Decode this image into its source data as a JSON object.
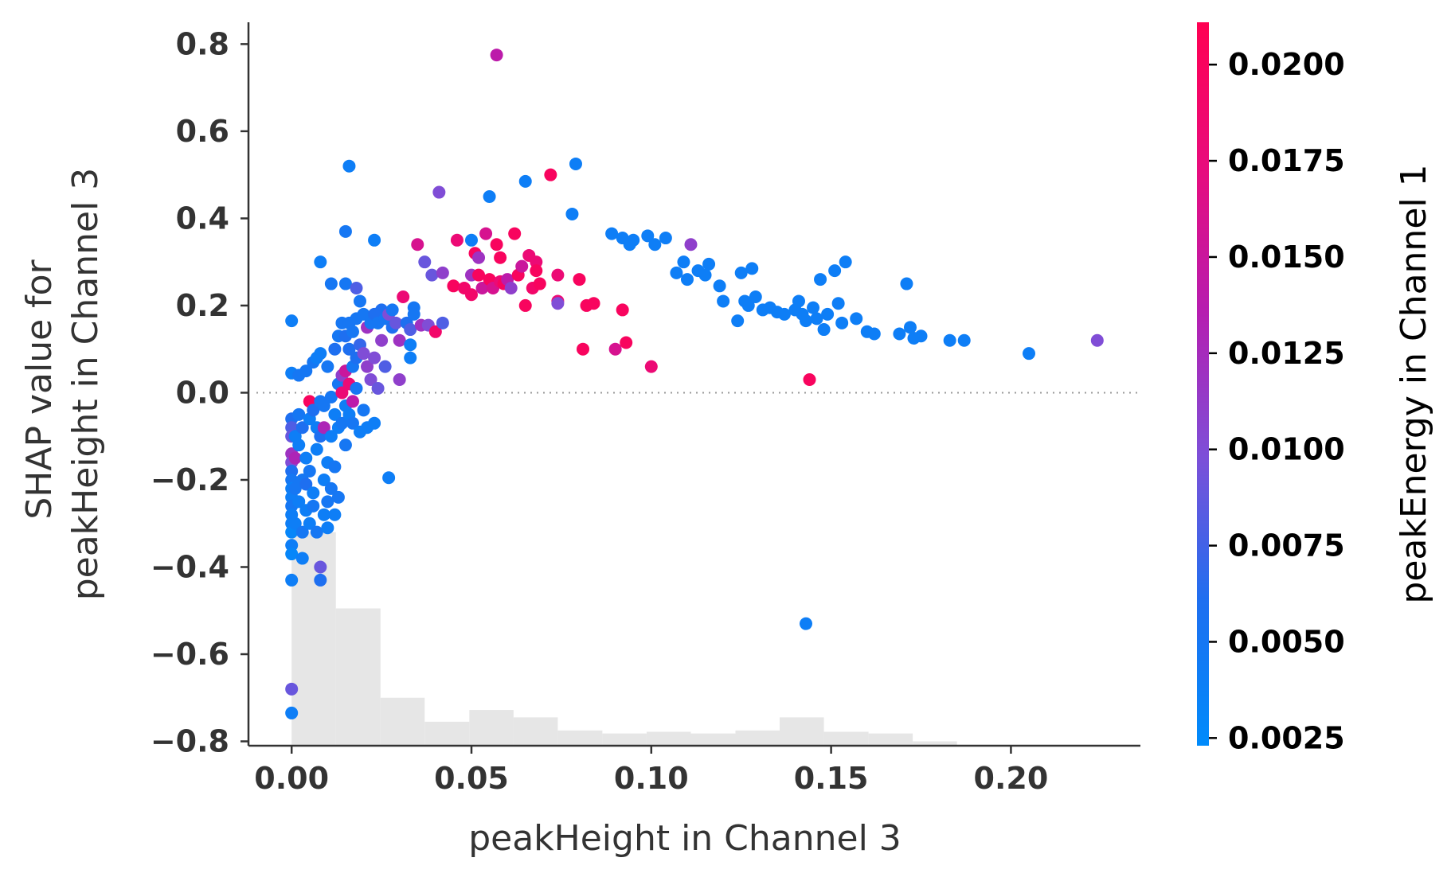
{
  "chart_data": {
    "type": "scatter",
    "xlabel": "peakHeight in Channel 3",
    "ylabel_lines": [
      "SHAP value for",
      "peakHeight in Channel 3"
    ],
    "colorbar_label": "peakEnergy in Channel 1",
    "xlim": [
      -0.012,
      0.236
    ],
    "ylim": [
      -0.81,
      0.85
    ],
    "x_ticks": [
      0.0,
      0.05,
      0.1,
      0.15,
      0.2
    ],
    "x_tick_labels": [
      "0.00",
      "0.05",
      "0.10",
      "0.15",
      "0.20"
    ],
    "y_ticks": [
      -0.8,
      -0.6,
      -0.4,
      -0.2,
      0.0,
      0.2,
      0.4,
      0.6,
      0.8
    ],
    "y_tick_labels": [
      "−0.8",
      "−0.6",
      "−0.4",
      "−0.2",
      "0.0",
      "0.2",
      "0.4",
      "0.6",
      "0.8"
    ],
    "colorbar_range": [
      0.0023,
      0.0211
    ],
    "colorbar_ticks": [
      0.0025,
      0.005,
      0.0075,
      0.01,
      0.0125,
      0.015,
      0.0175,
      0.02
    ],
    "colorbar_tick_labels": [
      "0.0025",
      "0.0050",
      "0.0075",
      "0.0100",
      "0.0125",
      "0.0150",
      "0.0175",
      "0.0200"
    ],
    "colormap": [
      "#008bfb",
      "#1e6ff0",
      "#7d4fd8",
      "#b61db0",
      "#e80c7c",
      "#ff0052"
    ],
    "zero_line": true,
    "histogram": {
      "color": "#e6e6e6",
      "y_base": -0.81,
      "bins": [
        {
          "x0": 0.0,
          "x1": 0.0123,
          "top": -0.32
        },
        {
          "x0": 0.0123,
          "x1": 0.0247,
          "top": -0.495
        },
        {
          "x0": 0.0247,
          "x1": 0.037,
          "top": -0.7
        },
        {
          "x0": 0.037,
          "x1": 0.0494,
          "top": -0.755
        },
        {
          "x0": 0.0494,
          "x1": 0.0617,
          "top": -0.728
        },
        {
          "x0": 0.0617,
          "x1": 0.074,
          "top": -0.745
        },
        {
          "x0": 0.074,
          "x1": 0.0864,
          "top": -0.775
        },
        {
          "x0": 0.0864,
          "x1": 0.0987,
          "top": -0.782
        },
        {
          "x0": 0.0987,
          "x1": 0.111,
          "top": -0.778
        },
        {
          "x0": 0.111,
          "x1": 0.1234,
          "top": -0.782
        },
        {
          "x0": 0.1234,
          "x1": 0.1357,
          "top": -0.775
        },
        {
          "x0": 0.1357,
          "x1": 0.148,
          "top": -0.745
        },
        {
          "x0": 0.148,
          "x1": 0.1604,
          "top": -0.778
        },
        {
          "x0": 0.1604,
          "x1": 0.1727,
          "top": -0.782
        },
        {
          "x0": 0.1727,
          "x1": 0.185,
          "top": -0.8
        }
      ]
    },
    "points": [
      [
        0.0,
        0.165,
        0.004
      ],
      [
        0.0,
        0.045,
        0.004
      ],
      [
        0.0,
        -0.06,
        0.006
      ],
      [
        0.0,
        -0.08,
        0.008
      ],
      [
        0.0,
        -0.1,
        0.009
      ],
      [
        0.0,
        -0.14,
        0.012
      ],
      [
        0.0,
        -0.16,
        0.01
      ],
      [
        0.0,
        -0.18,
        0.006
      ],
      [
        0.0,
        -0.2,
        0.005
      ],
      [
        0.0,
        -0.22,
        0.004
      ],
      [
        0.0,
        -0.24,
        0.004
      ],
      [
        0.0,
        -0.26,
        0.005
      ],
      [
        0.0,
        -0.28,
        0.004
      ],
      [
        0.0,
        -0.3,
        0.004
      ],
      [
        0.0,
        -0.32,
        0.003
      ],
      [
        0.0,
        -0.35,
        0.004
      ],
      [
        0.0,
        -0.37,
        0.003
      ],
      [
        0.0,
        -0.43,
        0.004
      ],
      [
        0.0,
        -0.68,
        0.009
      ],
      [
        0.0,
        -0.735,
        0.004
      ],
      [
        0.001,
        -0.1,
        0.004
      ],
      [
        0.001,
        -0.15,
        0.013
      ],
      [
        0.001,
        -0.22,
        0.005
      ],
      [
        0.001,
        -0.3,
        0.004
      ],
      [
        0.002,
        -0.05,
        0.005
      ],
      [
        0.002,
        -0.12,
        0.004
      ],
      [
        0.002,
        -0.25,
        0.004
      ],
      [
        0.002,
        0.04,
        0.005
      ],
      [
        0.003,
        -0.08,
        0.006
      ],
      [
        0.003,
        -0.2,
        0.005
      ],
      [
        0.003,
        -0.38,
        0.004
      ],
      [
        0.003,
        -0.32,
        0.005
      ],
      [
        0.004,
        0.05,
        0.005
      ],
      [
        0.004,
        -0.15,
        0.004
      ],
      [
        0.004,
        -0.27,
        0.004
      ],
      [
        0.004,
        -0.21,
        0.006
      ],
      [
        0.005,
        -0.02,
        0.02
      ],
      [
        0.005,
        -0.06,
        0.004
      ],
      [
        0.005,
        -0.18,
        0.005
      ],
      [
        0.005,
        -0.3,
        0.004
      ],
      [
        0.006,
        0.07,
        0.005
      ],
      [
        0.006,
        -0.04,
        0.006
      ],
      [
        0.006,
        -0.23,
        0.004
      ],
      [
        0.006,
        -0.26,
        0.005
      ],
      [
        0.007,
        -0.08,
        0.004
      ],
      [
        0.007,
        0.08,
        0.004
      ],
      [
        0.007,
        -0.13,
        0.004
      ],
      [
        0.007,
        -0.32,
        0.005
      ],
      [
        0.008,
        -0.02,
        0.005
      ],
      [
        0.008,
        -0.4,
        0.009
      ],
      [
        0.008,
        -0.43,
        0.006
      ],
      [
        0.008,
        -0.1,
        0.006
      ],
      [
        0.008,
        0.3,
        0.004
      ],
      [
        0.008,
        0.09,
        0.004
      ],
      [
        0.009,
        -0.08,
        0.013
      ],
      [
        0.009,
        -0.2,
        0.004
      ],
      [
        0.009,
        -0.28,
        0.004
      ],
      [
        0.009,
        -0.03,
        0.005
      ],
      [
        0.01,
        0.06,
        0.005
      ],
      [
        0.01,
        -0.16,
        0.004
      ],
      [
        0.01,
        -0.25,
        0.005
      ],
      [
        0.01,
        -0.31,
        0.004
      ],
      [
        0.011,
        0.25,
        0.005
      ],
      [
        0.011,
        -0.01,
        0.005
      ],
      [
        0.011,
        -0.1,
        0.004
      ],
      [
        0.011,
        -0.22,
        0.005
      ],
      [
        0.012,
        0.1,
        0.006
      ],
      [
        0.012,
        -0.05,
        0.004
      ],
      [
        0.012,
        -0.17,
        0.005
      ],
      [
        0.012,
        -0.28,
        0.004
      ],
      [
        0.013,
        0.13,
        0.005
      ],
      [
        0.013,
        0.02,
        0.005
      ],
      [
        0.013,
        -0.08,
        0.004
      ],
      [
        0.013,
        -0.24,
        0.005
      ],
      [
        0.014,
        0.16,
        0.005
      ],
      [
        0.014,
        0.04,
        0.011
      ],
      [
        0.014,
        0.0,
        0.018
      ],
      [
        0.014,
        -0.07,
        0.005
      ],
      [
        0.015,
        0.37,
        0.005
      ],
      [
        0.015,
        0.25,
        0.005
      ],
      [
        0.015,
        0.13,
        0.006
      ],
      [
        0.015,
        0.05,
        0.015
      ],
      [
        0.015,
        -0.03,
        0.004
      ],
      [
        0.015,
        -0.12,
        0.005
      ],
      [
        0.016,
        0.52,
        0.004
      ],
      [
        0.016,
        0.16,
        0.005
      ],
      [
        0.016,
        0.1,
        0.006
      ],
      [
        0.016,
        0.02,
        0.018
      ],
      [
        0.016,
        -0.05,
        0.004
      ],
      [
        0.017,
        0.14,
        0.005
      ],
      [
        0.017,
        0.06,
        0.005
      ],
      [
        0.017,
        -0.02,
        0.014
      ],
      [
        0.017,
        -0.07,
        0.005
      ],
      [
        0.018,
        0.24,
        0.008
      ],
      [
        0.018,
        0.17,
        0.005
      ],
      [
        0.018,
        0.08,
        0.006
      ],
      [
        0.018,
        0.01,
        0.005
      ],
      [
        0.019,
        0.21,
        0.005
      ],
      [
        0.019,
        0.11,
        0.007
      ],
      [
        0.019,
        -0.09,
        0.004
      ],
      [
        0.02,
        0.18,
        0.005
      ],
      [
        0.02,
        0.09,
        0.01
      ],
      [
        0.02,
        -0.04,
        0.005
      ],
      [
        0.021,
        0.15,
        0.012
      ],
      [
        0.021,
        0.06,
        0.011
      ],
      [
        0.021,
        -0.08,
        0.004
      ],
      [
        0.022,
        0.16,
        0.005
      ],
      [
        0.022,
        0.03,
        0.01
      ],
      [
        0.023,
        0.35,
        0.004
      ],
      [
        0.023,
        0.18,
        0.006
      ],
      [
        0.023,
        0.08,
        0.01
      ],
      [
        0.023,
        -0.07,
        0.004
      ],
      [
        0.024,
        0.16,
        0.005
      ],
      [
        0.024,
        0.01,
        0.009
      ],
      [
        0.025,
        0.19,
        0.006
      ],
      [
        0.025,
        0.12,
        0.011
      ],
      [
        0.026,
        0.17,
        0.005
      ],
      [
        0.026,
        0.06,
        0.008
      ],
      [
        0.027,
        -0.195,
        0.004
      ],
      [
        0.027,
        0.18,
        0.01
      ],
      [
        0.028,
        0.15,
        0.006
      ],
      [
        0.028,
        0.19,
        0.005
      ],
      [
        0.029,
        0.16,
        0.009
      ],
      [
        0.03,
        0.12,
        0.012
      ],
      [
        0.03,
        0.03,
        0.011
      ],
      [
        0.031,
        0.22,
        0.018
      ],
      [
        0.032,
        0.16,
        0.006
      ],
      [
        0.033,
        0.145,
        0.008
      ],
      [
        0.033,
        0.11,
        0.004
      ],
      [
        0.033,
        0.08,
        0.004
      ],
      [
        0.034,
        0.195,
        0.005
      ],
      [
        0.034,
        0.18,
        0.005
      ],
      [
        0.035,
        0.34,
        0.016
      ],
      [
        0.036,
        0.155,
        0.012
      ],
      [
        0.037,
        0.3,
        0.009
      ],
      [
        0.038,
        0.155,
        0.01
      ],
      [
        0.039,
        0.27,
        0.009
      ],
      [
        0.04,
        0.14,
        0.019
      ],
      [
        0.041,
        0.46,
        0.01
      ],
      [
        0.042,
        0.275,
        0.011
      ],
      [
        0.042,
        0.16,
        0.008
      ],
      [
        0.045,
        0.245,
        0.02
      ],
      [
        0.046,
        0.35,
        0.018
      ],
      [
        0.048,
        0.24,
        0.019
      ],
      [
        0.05,
        0.27,
        0.012
      ],
      [
        0.05,
        0.225,
        0.019
      ],
      [
        0.05,
        0.35,
        0.004
      ],
      [
        0.051,
        0.32,
        0.02
      ],
      [
        0.052,
        0.31,
        0.012
      ],
      [
        0.052,
        0.27,
        0.02
      ],
      [
        0.053,
        0.24,
        0.015
      ],
      [
        0.054,
        0.365,
        0.016
      ],
      [
        0.055,
        0.45,
        0.004
      ],
      [
        0.055,
        0.26,
        0.02
      ],
      [
        0.056,
        0.24,
        0.016
      ],
      [
        0.057,
        0.34,
        0.02
      ],
      [
        0.057,
        0.775,
        0.014
      ],
      [
        0.058,
        0.31,
        0.02
      ],
      [
        0.058,
        0.255,
        0.018
      ],
      [
        0.059,
        0.25,
        0.02
      ],
      [
        0.06,
        0.26,
        0.014
      ],
      [
        0.061,
        0.24,
        0.011
      ],
      [
        0.062,
        0.365,
        0.02
      ],
      [
        0.063,
        0.27,
        0.02
      ],
      [
        0.064,
        0.29,
        0.015
      ],
      [
        0.065,
        0.485,
        0.004
      ],
      [
        0.065,
        0.2,
        0.02
      ],
      [
        0.066,
        0.315,
        0.018
      ],
      [
        0.067,
        0.24,
        0.019
      ],
      [
        0.068,
        0.3,
        0.018
      ],
      [
        0.068,
        0.28,
        0.02
      ],
      [
        0.069,
        0.25,
        0.02
      ],
      [
        0.072,
        0.5,
        0.02
      ],
      [
        0.074,
        0.27,
        0.018
      ],
      [
        0.074,
        0.21,
        0.018
      ],
      [
        0.074,
        0.205,
        0.01
      ],
      [
        0.078,
        0.41,
        0.004
      ],
      [
        0.079,
        0.525,
        0.004
      ],
      [
        0.08,
        0.26,
        0.02
      ],
      [
        0.081,
        0.1,
        0.02
      ],
      [
        0.082,
        0.2,
        0.02
      ],
      [
        0.084,
        0.205,
        0.02
      ],
      [
        0.089,
        0.365,
        0.004
      ],
      [
        0.09,
        0.1,
        0.016
      ],
      [
        0.092,
        0.355,
        0.004
      ],
      [
        0.092,
        0.19,
        0.02
      ],
      [
        0.093,
        0.115,
        0.02
      ],
      [
        0.094,
        0.34,
        0.004
      ],
      [
        0.095,
        0.35,
        0.004
      ],
      [
        0.099,
        0.36,
        0.004
      ],
      [
        0.1,
        0.06,
        0.018
      ],
      [
        0.101,
        0.34,
        0.004
      ],
      [
        0.104,
        0.355,
        0.004
      ],
      [
        0.107,
        0.275,
        0.004
      ],
      [
        0.109,
        0.3,
        0.004
      ],
      [
        0.11,
        0.26,
        0.004
      ],
      [
        0.111,
        0.34,
        0.011
      ],
      [
        0.113,
        0.28,
        0.004
      ],
      [
        0.115,
        0.27,
        0.004
      ],
      [
        0.116,
        0.295,
        0.004
      ],
      [
        0.119,
        0.245,
        0.004
      ],
      [
        0.12,
        0.21,
        0.004
      ],
      [
        0.124,
        0.165,
        0.004
      ],
      [
        0.125,
        0.275,
        0.004
      ],
      [
        0.126,
        0.21,
        0.004
      ],
      [
        0.127,
        0.2,
        0.004
      ],
      [
        0.128,
        0.285,
        0.004
      ],
      [
        0.129,
        0.22,
        0.004
      ],
      [
        0.131,
        0.19,
        0.004
      ],
      [
        0.133,
        0.195,
        0.004
      ],
      [
        0.135,
        0.185,
        0.004
      ],
      [
        0.137,
        0.18,
        0.004
      ],
      [
        0.14,
        0.19,
        0.004
      ],
      [
        0.141,
        0.21,
        0.004
      ],
      [
        0.142,
        0.18,
        0.004
      ],
      [
        0.143,
        0.165,
        0.004
      ],
      [
        0.143,
        -0.53,
        0.004
      ],
      [
        0.144,
        0.03,
        0.02
      ],
      [
        0.145,
        0.195,
        0.004
      ],
      [
        0.146,
        0.17,
        0.004
      ],
      [
        0.147,
        0.26,
        0.004
      ],
      [
        0.148,
        0.145,
        0.004
      ],
      [
        0.149,
        0.18,
        0.004
      ],
      [
        0.151,
        0.28,
        0.004
      ],
      [
        0.152,
        0.205,
        0.004
      ],
      [
        0.153,
        0.16,
        0.004
      ],
      [
        0.154,
        0.3,
        0.004
      ],
      [
        0.157,
        0.17,
        0.004
      ],
      [
        0.16,
        0.14,
        0.004
      ],
      [
        0.162,
        0.135,
        0.004
      ],
      [
        0.169,
        0.135,
        0.004
      ],
      [
        0.171,
        0.25,
        0.004
      ],
      [
        0.172,
        0.15,
        0.004
      ],
      [
        0.173,
        0.125,
        0.004
      ],
      [
        0.175,
        0.13,
        0.004
      ],
      [
        0.183,
        0.12,
        0.004
      ],
      [
        0.187,
        0.12,
        0.004
      ],
      [
        0.205,
        0.09,
        0.004
      ],
      [
        0.224,
        0.12,
        0.01
      ]
    ]
  }
}
